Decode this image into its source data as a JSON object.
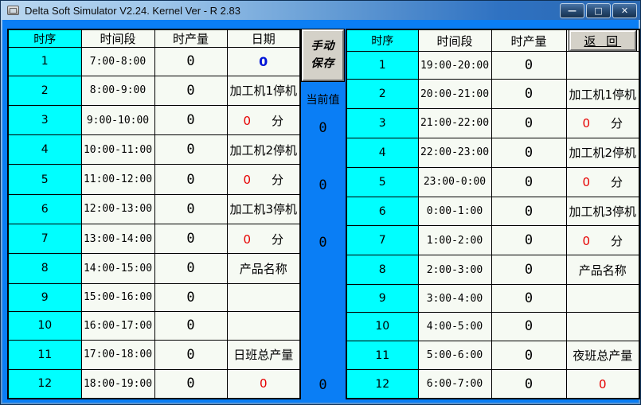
{
  "window": {
    "title": "Delta Soft Simulator V2.24. Kernel Ver - R 2.83",
    "controls": {
      "minimize": "—",
      "maximize": "□",
      "close": "✕"
    }
  },
  "colors": {
    "background": "#0a7ef5",
    "header_cyan": "#00ffff",
    "cell_bg": "#f6faf3",
    "red_value": "#e60000",
    "blue_value": "#0014d8"
  },
  "left_table": {
    "headers": [
      "时序",
      "时间段",
      "时产量",
      "日期"
    ],
    "rows": [
      {
        "seq": "1",
        "time": "7:00-8:00",
        "qty": "0",
        "date": {
          "kind": "blue",
          "value": "0"
        }
      },
      {
        "seq": "2",
        "time": "8:00-9:00",
        "qty": "0",
        "date": {
          "kind": "text",
          "value": "加工机1停机"
        }
      },
      {
        "seq": "3",
        "time": "9:00-10:00",
        "qty": "0",
        "date": {
          "kind": "minutes",
          "value": "0",
          "unit": "分"
        }
      },
      {
        "seq": "4",
        "time": "10:00-11:00",
        "qty": "0",
        "date": {
          "kind": "text",
          "value": "加工机2停机"
        }
      },
      {
        "seq": "5",
        "time": "11:00-12:00",
        "qty": "0",
        "date": {
          "kind": "minutes",
          "value": "0",
          "unit": "分"
        }
      },
      {
        "seq": "6",
        "time": "12:00-13:00",
        "qty": "0",
        "date": {
          "kind": "text",
          "value": "加工机3停机"
        }
      },
      {
        "seq": "7",
        "time": "13:00-14:00",
        "qty": "0",
        "date": {
          "kind": "minutes",
          "value": "0",
          "unit": "分"
        }
      },
      {
        "seq": "8",
        "time": "14:00-15:00",
        "qty": "0",
        "date": {
          "kind": "text",
          "value": "产品名称"
        }
      },
      {
        "seq": "9",
        "time": "15:00-16:00",
        "qty": "0",
        "date": {
          "kind": "text",
          "value": ""
        }
      },
      {
        "seq": "10",
        "time": "16:00-17:00",
        "qty": "0",
        "date": {
          "kind": "text",
          "value": ""
        }
      },
      {
        "seq": "11",
        "time": "17:00-18:00",
        "qty": "0",
        "date": {
          "kind": "text",
          "value": "日班总产量"
        }
      },
      {
        "seq": "12",
        "time": "18:00-19:00",
        "qty": "0",
        "date": {
          "kind": "red",
          "value": "0"
        }
      }
    ]
  },
  "middle": {
    "save_button": {
      "line1": "手动",
      "line2": "保存"
    },
    "current_label": "当前值",
    "current_values": [
      {
        "row": 3,
        "value": "0"
      },
      {
        "row": 5,
        "value": "0"
      },
      {
        "row": 7,
        "value": "0"
      },
      {
        "row": 12,
        "value": "0"
      }
    ]
  },
  "right_table": {
    "headers": [
      "时序",
      "时间段",
      "时产量"
    ],
    "return_button": "返 回",
    "rows": [
      {
        "seq": "1",
        "time": "19:00-20:00",
        "qty": "0",
        "date": {
          "kind": "text",
          "value": ""
        }
      },
      {
        "seq": "2",
        "time": "20:00-21:00",
        "qty": "0",
        "date": {
          "kind": "text",
          "value": "加工机1停机"
        }
      },
      {
        "seq": "3",
        "time": "21:00-22:00",
        "qty": "0",
        "date": {
          "kind": "minutes",
          "value": "0",
          "unit": "分"
        }
      },
      {
        "seq": "4",
        "time": "22:00-23:00",
        "qty": "0",
        "date": {
          "kind": "text",
          "value": "加工机2停机"
        }
      },
      {
        "seq": "5",
        "time": "23:00-0:00",
        "qty": "0",
        "date": {
          "kind": "minutes",
          "value": "0",
          "unit": "分"
        }
      },
      {
        "seq": "6",
        "time": "0:00-1:00",
        "qty": "0",
        "date": {
          "kind": "text",
          "value": "加工机3停机"
        }
      },
      {
        "seq": "7",
        "time": "1:00-2:00",
        "qty": "0",
        "date": {
          "kind": "minutes",
          "value": "0",
          "unit": "分"
        }
      },
      {
        "seq": "8",
        "time": "2:00-3:00",
        "qty": "0",
        "date": {
          "kind": "text",
          "value": "产品名称"
        }
      },
      {
        "seq": "9",
        "time": "3:00-4:00",
        "qty": "0",
        "date": {
          "kind": "text",
          "value": ""
        }
      },
      {
        "seq": "10",
        "time": "4:00-5:00",
        "qty": "0",
        "date": {
          "kind": "text",
          "value": ""
        }
      },
      {
        "seq": "11",
        "time": "5:00-6:00",
        "qty": "0",
        "date": {
          "kind": "text",
          "value": "夜班总产量"
        }
      },
      {
        "seq": "12",
        "time": "6:00-7:00",
        "qty": "0",
        "date": {
          "kind": "red",
          "value": "0"
        }
      }
    ]
  }
}
